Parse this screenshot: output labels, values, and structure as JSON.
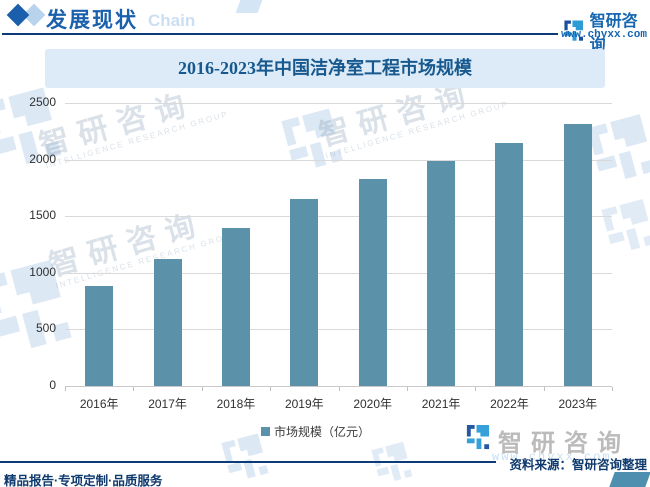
{
  "header": {
    "title": "发展现状",
    "ghost_text": "Chain",
    "brand_name": "智研咨询",
    "brand_url": "www.chyxx.com"
  },
  "chart_data": {
    "type": "bar",
    "title": "2016-2023年中国洁净室工程市场规模",
    "categories": [
      "2016年",
      "2017年",
      "2018年",
      "2019年",
      "2020年",
      "2021年",
      "2022年",
      "2023年"
    ],
    "values": [
      880,
      1125,
      1400,
      1655,
      1830,
      1990,
      2150,
      2315
    ],
    "series_name": "市场规模（亿元）",
    "xlabel": "",
    "ylabel": "",
    "ylim": [
      0,
      2500
    ],
    "yticks": [
      0,
      500,
      1000,
      1500,
      2000,
      2500
    ],
    "grid": true,
    "legend_position": "bottom",
    "bar_color": "#5B92A9"
  },
  "watermark": {
    "brand_cn": "智研咨询",
    "brand_en": "INTELLIGENCE RESEARCH GROUP",
    "url": "www.chyxx.com"
  },
  "footer": {
    "brand_gray": "智研咨询",
    "source": "资料来源：智研咨询整理",
    "tagline": "精品报告·专项定制·品质服务"
  },
  "colors": {
    "accent_blue": "#1565B0",
    "navy_rule": "#0C3C78",
    "bar": "#5B92A9",
    "title_band_bg": "#DCEBF7",
    "title_text": "#17598E",
    "gridline": "#D9D9D9"
  }
}
